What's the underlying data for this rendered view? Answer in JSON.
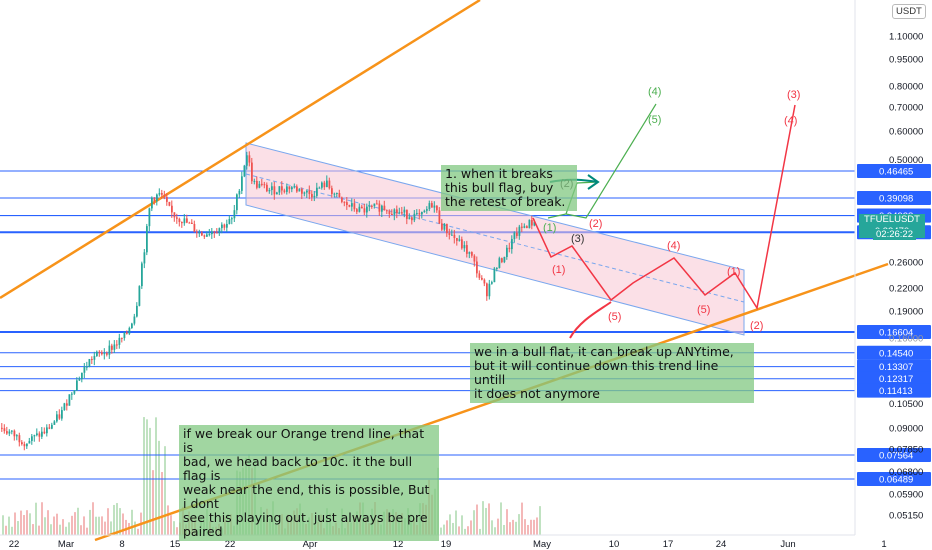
{
  "currency": "USDT",
  "symbol_label": "TFUELUSDT",
  "current_price": "0.33470",
  "countdown": "02:26:22",
  "colors": {
    "up": "#26a69a",
    "down": "#ef5350",
    "trendline": "#f7931a",
    "hline": "#2962ff",
    "channel_fill": "#f8c6d4",
    "wave_red": "#f23645",
    "wave_green": "#4caf50",
    "note_bg": "#82c882"
  },
  "x_ticks": [
    "22",
    "Mar",
    "8",
    "15",
    "22",
    "Apr",
    "12",
    "19",
    "May",
    "10",
    "17",
    "24",
    "Jun",
    "1"
  ],
  "y_ticks": [
    "1.10000",
    "0.95000",
    "0.80000",
    "0.70000",
    "0.60000",
    "0.50000",
    "0.26000",
    "0.22000",
    "0.19000",
    "0.10500",
    "0.09000",
    "0.07850",
    "0.06800",
    "0.05900",
    "0.05150"
  ],
  "y_ticks_faint": [
    "0.16000"
  ],
  "horizontal_levels": [
    "0.46465",
    "0.39098",
    "0.34965",
    "0.34928",
    "0.31411",
    "0.16604",
    "0.14540",
    "0.13307",
    "0.12317",
    "0.11413",
    "0.07564",
    "0.06489"
  ],
  "wave_labels": {
    "red": [
      "(1)",
      "(2)",
      "(3)",
      "(4)",
      "(5)",
      "(1)",
      "(2)",
      "(3)",
      "(4)",
      "(5)"
    ],
    "green": [
      "(1)",
      "(2)",
      "(3)",
      "(4)",
      "(5)"
    ]
  },
  "notes": {
    "note1": "1. when it breaks\nthis bull flag, buy\nthe retest of break.",
    "note2": "we in a bull flat, it can break up ANYtime,\nbut it will continue down this trend line untill\nit does not anymore",
    "note3": "if we break our Orange trend line, that is\nbad, we head back to 10c.  it the bull flag is\nweak near the end, this is possible, But i dont\nsee this playing out. just always be pre\npaired"
  }
}
